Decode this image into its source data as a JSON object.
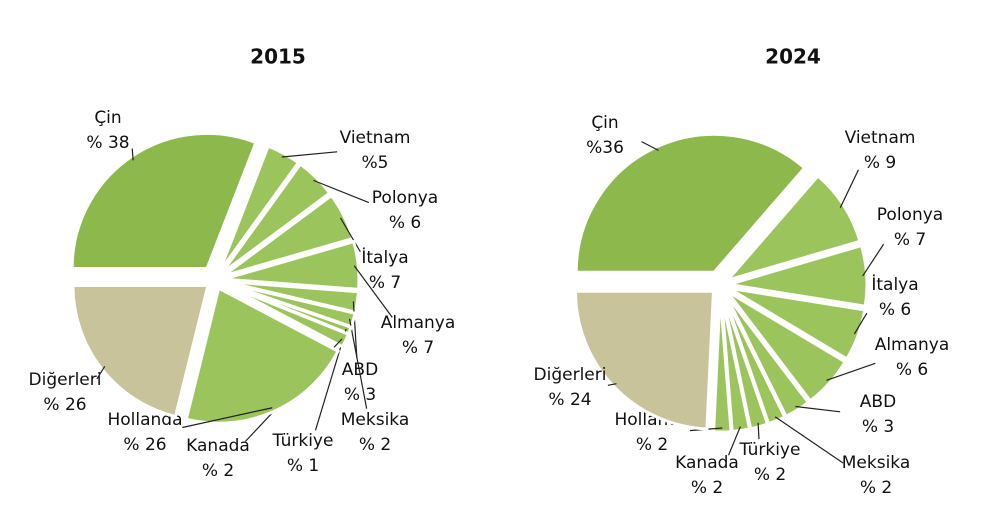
{
  "chart_data": [
    {
      "type": "pie",
      "title": "2015",
      "categories": [
        "Çin",
        "Vietnam",
        "Polonya",
        "İtalya",
        "Almanya",
        "ABD",
        "Meksika",
        "Türkiye",
        "Kanada",
        "Hollanda",
        "Diğerleri"
      ],
      "values": [
        38,
        5,
        6,
        7,
        7,
        3,
        2,
        1,
        2,
        26,
        26
      ],
      "value_labels": [
        "% 38",
        "%5",
        "% 6",
        "% 7",
        "% 7",
        "% 3",
        "% 2",
        "% 1",
        "% 2",
        "% 26",
        "% 26"
      ],
      "colors": [
        "#8db84c",
        "#9cc45c",
        "#9cc45c",
        "#9cc45c",
        "#9cc45c",
        "#9cc45c",
        "#9cc45c",
        "#9cc45c",
        "#9cc45c",
        "#9cc45c",
        "#c9c39c"
      ]
    },
    {
      "type": "pie",
      "title": "2024",
      "categories": [
        "Çin",
        "Vietnam",
        "Polonya",
        "İtalya",
        "Almanya",
        "ABD",
        "Meksika",
        "Türkiye",
        "Kanada",
        "Hollanda",
        "Diğerleri"
      ],
      "values": [
        36,
        9,
        7,
        6,
        6,
        3,
        2,
        2,
        2,
        2,
        24
      ],
      "value_labels": [
        "%36",
        "% 9",
        "% 7",
        "% 6",
        "% 6",
        "% 3",
        "% 2",
        "% 2",
        "% 2",
        "% 2",
        "% 24"
      ],
      "colors": [
        "#8db84c",
        "#9cc45c",
        "#9cc45c",
        "#9cc45c",
        "#9cc45c",
        "#9cc45c",
        "#9cc45c",
        "#9cc45c",
        "#9cc45c",
        "#9cc45c",
        "#c9c39c"
      ]
    }
  ]
}
